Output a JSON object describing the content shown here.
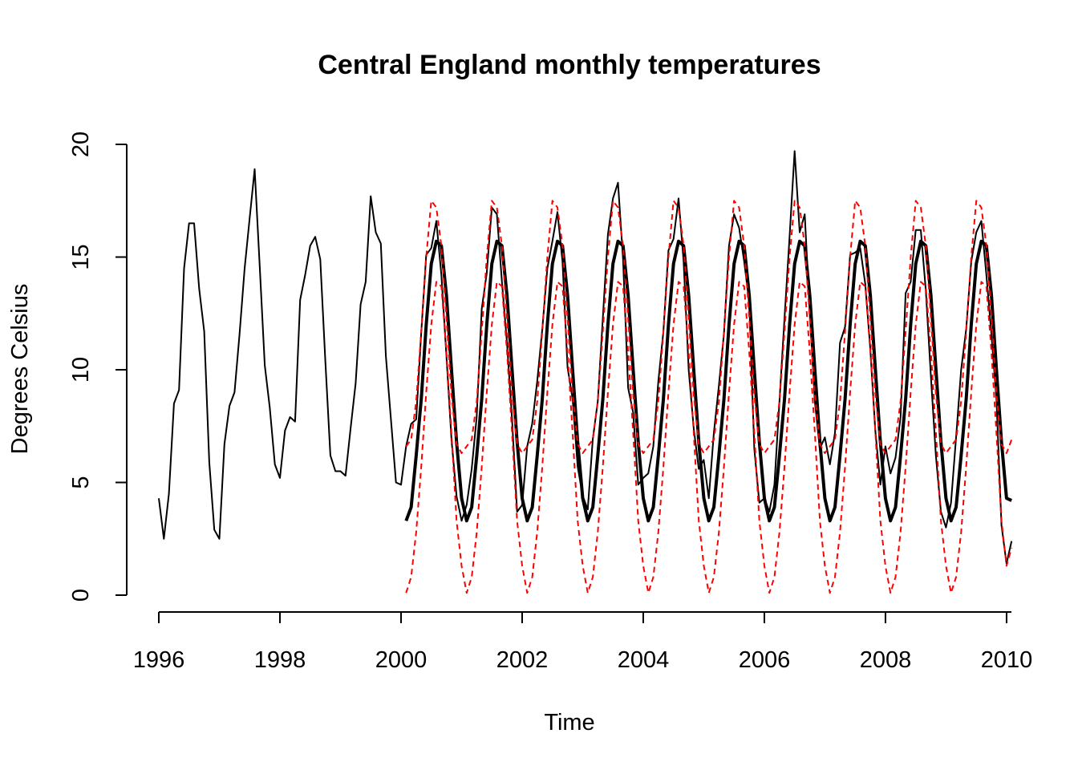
{
  "chart_data": {
    "type": "line",
    "title": "Central England monthly temperatures",
    "xlabel": "Time",
    "ylabel": "Degrees Celsius",
    "xlim": [
      1996,
      2010.08
    ],
    "ylim": [
      0,
      20
    ],
    "x_ticks": [
      "1996",
      "1998",
      "2000",
      "2002",
      "2004",
      "2006",
      "2008",
      "2010"
    ],
    "y_ticks": [
      "0",
      "5",
      "10",
      "15",
      "20"
    ],
    "grid": false,
    "legend": "none",
    "colors": {
      "observed": "#000000",
      "fitted": "#000000",
      "interval": "#ff0000"
    },
    "series": [
      {
        "style": "solid-thin",
        "color": "#000000",
        "x_start": 1996.0,
        "x_step": 0.08333,
        "values": [
          4.3,
          2.5,
          4.5,
          8.5,
          9.1,
          14.5,
          16.5,
          16.5,
          13.6,
          11.7,
          5.9,
          2.9,
          2.5,
          6.7,
          8.4,
          9.0,
          11.6,
          14.5,
          16.7,
          18.9,
          14.6,
          10.2,
          8.3,
          5.8,
          5.2,
          7.3,
          7.9,
          7.7,
          13.1,
          14.2,
          15.5,
          15.9,
          14.9,
          10.4,
          6.2,
          5.5,
          5.5,
          5.3,
          7.4,
          9.4,
          12.9,
          13.9,
          17.7,
          16.1,
          15.6,
          10.6,
          7.8,
          5.0,
          4.9,
          6.6,
          7.6,
          7.8,
          11.6,
          15.1,
          15.4,
          16.6,
          14.2,
          10.6,
          6.9,
          4.4,
          3.3,
          4.0,
          5.6,
          7.9,
          12.7,
          14.3,
          17.2,
          16.9,
          13.9,
          11.2,
          7.8,
          3.7,
          4.0,
          6.6,
          7.6,
          9.5,
          11.8,
          14.5,
          15.7,
          17.0,
          14.8,
          10.1,
          8.7,
          5.7,
          4.4,
          3.8,
          6.9,
          8.6,
          12.3,
          16.0,
          17.6,
          18.3,
          14.9,
          9.2,
          8.1,
          4.9,
          5.2,
          5.4,
          6.6,
          9.5,
          11.7,
          15.3,
          15.8,
          17.6,
          14.8,
          10.0,
          7.4,
          5.6,
          6.0,
          4.3,
          7.2,
          9.3,
          11.6,
          15.5,
          16.9,
          16.3,
          14.8,
          13.0,
          6.5,
          4.1,
          4.3,
          3.7,
          4.9,
          8.6,
          12.3,
          15.9,
          19.7,
          16.1,
          16.9,
          12.5,
          8.6,
          6.5,
          7.0,
          5.8,
          7.2,
          11.2,
          11.9,
          15.1,
          15.2,
          15.4,
          13.8,
          10.9,
          7.3,
          4.9,
          6.6,
          5.4,
          6.1,
          7.9,
          13.4,
          13.9,
          16.2,
          16.2,
          13.5,
          9.7,
          6.2,
          3.7,
          3.0,
          4.1,
          7.0,
          10.0,
          11.8,
          14.8,
          16.1,
          16.6,
          14.2,
          11.6,
          8.7,
          3.1,
          1.4,
          2.4
        ]
      },
      {
        "style": "solid-thick",
        "color": "#000000",
        "x_start": 2000.0833,
        "x_step": 0.08333,
        "cycle": [
          3.3,
          3.9,
          6.2,
          8.7,
          12.0,
          14.7,
          15.7,
          15.5,
          13.3,
          10.0,
          6.8,
          4.3
        ],
        "cycles": 10,
        "final_value": 4.2
      },
      {
        "style": "dashed",
        "color": "#ff0000",
        "x_start": 2000.0833,
        "x_step": 0.08333,
        "cycle": [
          6.6,
          6.9,
          8.6,
          11.7,
          15.0,
          17.5,
          17.2,
          15.5,
          12.3,
          8.9,
          6.7,
          6.3
        ],
        "cycles": 10,
        "final_value": 6.9
      },
      {
        "style": "dashed",
        "color": "#ff0000",
        "x_start": 2000.0833,
        "x_step": 0.08333,
        "cycle": [
          0.1,
          0.8,
          2.8,
          5.7,
          9.0,
          12.0,
          13.9,
          13.7,
          10.8,
          7.2,
          3.3,
          1.3
        ],
        "cycles": 10,
        "final_value": 2.1
      }
    ]
  }
}
